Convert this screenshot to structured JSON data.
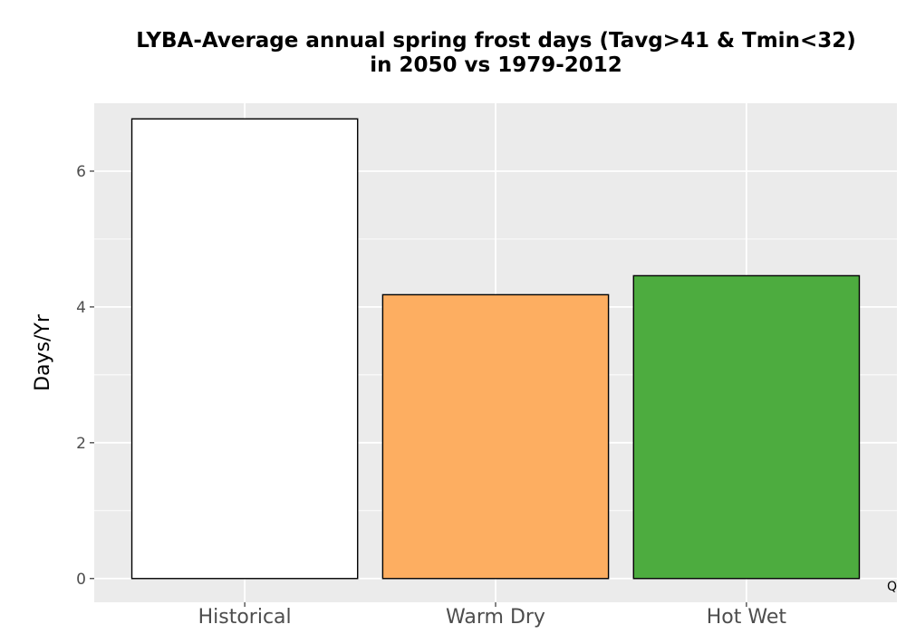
{
  "chart_data": {
    "type": "bar",
    "title_lines": [
      "LYBA-Average annual spring frost days (Tavg>41 & Tmin<32)",
      "in 2050 vs 1979-2012"
    ],
    "categories": [
      "Historical",
      "Warm Dry",
      "Hot Wet"
    ],
    "values": [
      6.77,
      4.18,
      4.46
    ],
    "colors": [
      "#ffffff",
      "#fdae61",
      "#4dac3f"
    ],
    "bar_outline_color": "#000000",
    "xlabel": "",
    "ylabel": "Days/Yr",
    "ylim": [
      -0.35,
      7.0
    ],
    "yticks": [
      0,
      2,
      4,
      6
    ],
    "yticklabels": [
      "0",
      "2",
      "4",
      "6"
    ],
    "grid": true,
    "panel_background": "#ebebeb",
    "legend": "none",
    "corner_annotation": "Q"
  }
}
